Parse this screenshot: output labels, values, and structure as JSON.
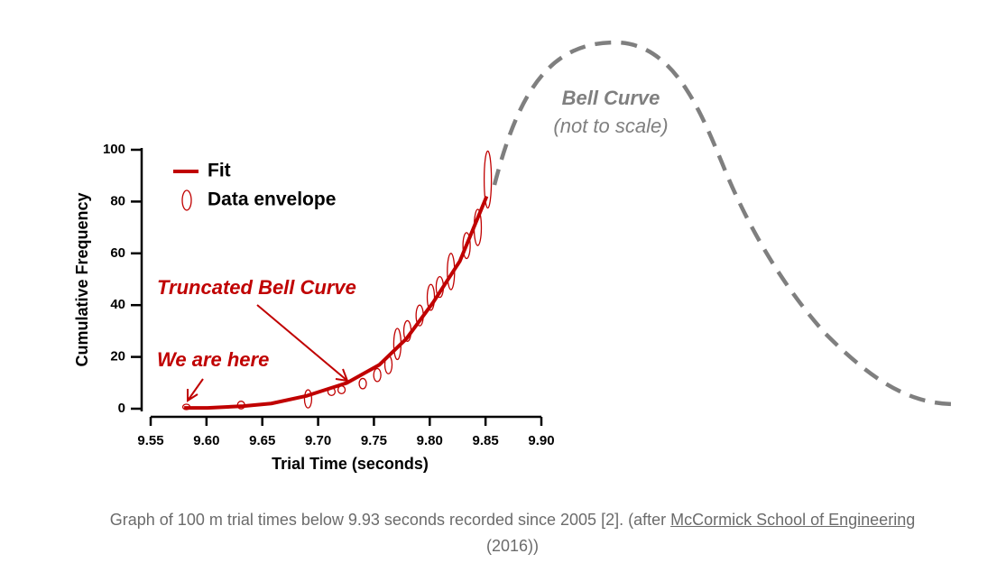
{
  "chart_data": {
    "type": "line",
    "x_label": "Trial Time (seconds)",
    "y_label": "Cumulative Frequency",
    "xlim": [
      9.55,
      9.9
    ],
    "xticks": [
      9.55,
      {
        "value": 9.6,
        "label": "9.60"
      },
      9.65,
      {
        "value": 9.7,
        "label": "9.70"
      },
      9.75,
      {
        "value": 9.8,
        "label": "9.80"
      },
      9.85,
      {
        "value": 9.9,
        "label": "9.90"
      }
    ],
    "ylim": [
      0,
      100
    ],
    "yticks": [
      0,
      20,
      40,
      60,
      80,
      100
    ],
    "legend": "upper left",
    "series": [
      {
        "name": "Fit",
        "type": "line",
        "color": "#c00000",
        "x": [
          9.58,
          9.601,
          9.633,
          9.658,
          9.69,
          9.726,
          9.755,
          9.779,
          9.803,
          9.827,
          9.851
        ],
        "values": [
          0.3,
          0.3,
          1,
          2,
          5,
          10,
          17,
          27,
          41,
          57,
          82
        ]
      },
      {
        "name": "Data envelope",
        "type": "scatter",
        "color": "#c00000",
        "x": [
          9.582,
          9.631,
          9.691,
          9.712,
          9.721,
          9.74,
          9.753,
          9.763,
          9.771,
          9.78,
          9.791,
          9.801,
          9.809,
          9.819,
          9.833,
          9.843,
          9.852
        ],
        "values": [
          0.7,
          1.4,
          3.8,
          6.6,
          7.3,
          9.7,
          13,
          17,
          25,
          30,
          36,
          43,
          47,
          53,
          63,
          70,
          88.5
        ],
        "spread": [
          1,
          3,
          7,
          3,
          3,
          4,
          5,
          7,
          12,
          8,
          8,
          10,
          8,
          14,
          10,
          14,
          22
        ]
      }
    ],
    "annotations": [
      "Truncated Bell Curve",
      "We are here",
      "Bell Curve",
      "(not to scale)"
    ]
  },
  "caption": {
    "text": "Graph of 100 m trial times below 9.93 seconds recorded since 2005 [2]. (after ",
    "link": "McCormick School of Engineering",
    "tail": " (2016))"
  }
}
